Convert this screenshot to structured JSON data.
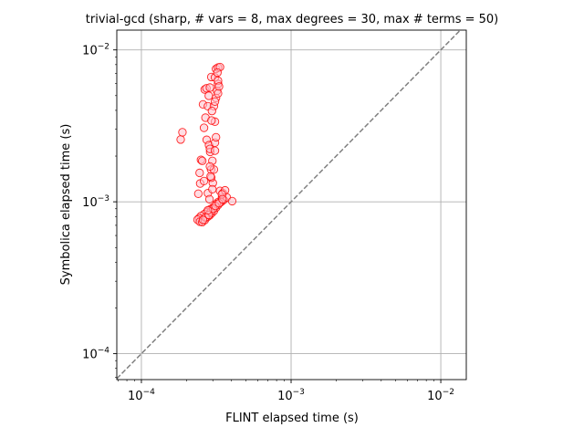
{
  "chart_data": {
    "type": "scatter",
    "title": "trivial-gcd (sharp, # vars = 8, max degrees = 30, max # terms = 50)",
    "xlabel": "FLINT elapsed time (s)",
    "ylabel": "Symbolica elapsed time (s)",
    "xscale": "log",
    "yscale": "log",
    "xlim": [
      6.85e-05,
      0.0148
    ],
    "ylim": [
      6.75e-05,
      0.0135
    ],
    "grid": true,
    "x_ticks": [
      {
        "value": 0.0001,
        "base": "10",
        "exp": "−4"
      },
      {
        "value": 0.001,
        "base": "10",
        "exp": "−3"
      },
      {
        "value": 0.01,
        "base": "10",
        "exp": "−2"
      }
    ],
    "y_ticks": [
      {
        "value": 0.0001,
        "base": "10",
        "exp": "−4"
      },
      {
        "value": 0.001,
        "base": "10",
        "exp": "−3"
      },
      {
        "value": 0.01,
        "base": "10",
        "exp": "−2"
      }
    ],
    "reference_line": {
      "style": "dashed",
      "color": "#808080",
      "relation": "y = x"
    },
    "marker": {
      "shape": "circle",
      "edge_color": "#ff0000",
      "face_color": "#ffc0cb"
    },
    "points": [
      [
        0.000183,
        0.00257
      ],
      [
        0.000188,
        0.00287
      ],
      [
        0.00024,
        0.00113
      ],
      [
        0.000245,
        0.00155
      ],
      [
        0.00025,
        0.00189
      ],
      [
        0.000255,
        0.00186
      ],
      [
        0.000247,
        0.00132
      ],
      [
        0.000262,
        0.00137
      ],
      [
        0.000258,
        0.00438
      ],
      [
        0.000265,
        0.00549
      ],
      [
        0.000272,
        0.00559
      ],
      [
        0.000262,
        0.00307
      ],
      [
        0.000268,
        0.00358
      ],
      [
        0.000278,
        0.00426
      ],
      [
        0.000282,
        0.00499
      ],
      [
        0.000287,
        0.00565
      ],
      [
        0.000293,
        0.00663
      ],
      [
        0.000273,
        0.00256
      ],
      [
        0.000283,
        0.00236
      ],
      [
        0.000288,
        0.00213
      ],
      [
        0.000298,
        0.00186
      ],
      [
        0.000292,
        0.00163
      ],
      [
        0.000305,
        0.00163
      ],
      [
        0.0003,
        0.00133
      ],
      [
        0.000278,
        0.00114
      ],
      [
        0.000285,
        0.00104
      ],
      [
        0.000293,
        0.00144
      ],
      [
        0.000298,
        0.00121
      ],
      [
        0.00031,
        0.00245
      ],
      [
        0.000315,
        0.00266
      ],
      [
        0.00031,
        0.00337
      ],
      [
        0.000305,
        0.00426
      ],
      [
        0.000315,
        0.00483
      ],
      [
        0.00032,
        0.00538
      ],
      [
        0.000325,
        0.00597
      ],
      [
        0.00031,
        0.00659
      ],
      [
        0.000315,
        0.0075
      ],
      [
        0.000325,
        0.00765
      ],
      [
        0.000335,
        0.00771
      ],
      [
        0.000322,
        0.00709
      ],
      [
        0.000325,
        0.00627
      ],
      [
        0.00033,
        0.00574
      ],
      [
        0.000325,
        0.00517
      ],
      [
        0.00031,
        0.00457
      ],
      [
        0.000296,
        0.00396
      ],
      [
        0.000294,
        0.00343
      ],
      [
        0.000287,
        0.00223
      ],
      [
        0.00031,
        0.00217
      ],
      [
        0.000287,
        0.00171
      ],
      [
        0.00029,
        0.00147
      ],
      [
        0.000335,
        0.00118
      ],
      [
        0.000345,
        0.00106
      ],
      [
        0.00035,
        0.00114
      ],
      [
        0.000362,
        0.00119
      ],
      [
        0.000345,
        0.00101
      ],
      [
        0.000325,
        0.000995
      ],
      [
        0.000315,
        0.000945
      ],
      [
        0.0003,
        0.000915
      ],
      [
        0.00029,
        0.000895
      ],
      [
        0.000281,
        0.000873
      ],
      [
        0.000273,
        0.000852
      ],
      [
        0.000263,
        0.00083
      ],
      [
        0.00025,
        0.000806
      ],
      [
        0.000243,
        0.00078
      ],
      [
        0.000237,
        0.000762
      ],
      [
        0.000246,
        0.00074
      ],
      [
        0.000255,
        0.000735
      ],
      [
        0.000265,
        0.000758
      ],
      [
        0.000275,
        0.000792
      ],
      [
        0.000285,
        0.000813
      ],
      [
        0.000295,
        0.000842
      ],
      [
        0.000305,
        0.000872
      ],
      [
        0.000315,
        0.000915
      ],
      [
        0.000325,
        0.000952
      ],
      [
        0.000338,
        0.000992
      ],
      [
        0.000355,
        0.00103
      ],
      [
        0.000372,
        0.00107
      ],
      [
        0.000404,
        0.00101
      ],
      [
        0.000345,
        0.00112
      ],
      [
        0.000318,
        0.00097
      ],
      [
        0.000291,
        0.00086
      ],
      [
        0.000268,
        0.00079
      ],
      [
        0.000258,
        0.00076
      ],
      [
        0.000282,
        0.00082
      ],
      [
        0.000302,
        0.0009
      ],
      [
        0.000312,
        0.00094
      ],
      [
        0.00033,
        0.00098
      ],
      [
        0.000348,
        0.00104
      ],
      [
        0.000278,
        0.00088
      ]
    ]
  }
}
